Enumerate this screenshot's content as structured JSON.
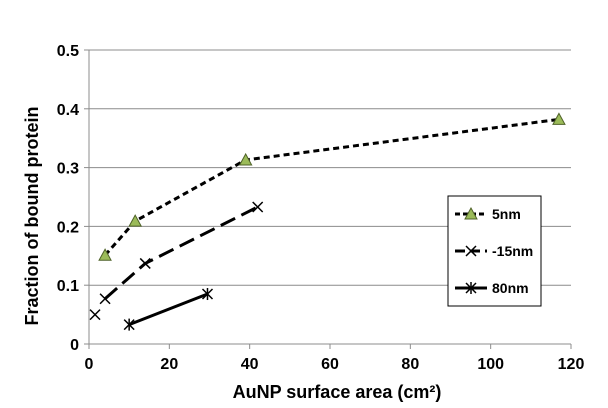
{
  "chart_data": {
    "type": "scatter",
    "title": "",
    "xlabel": "AuNP surface area (cm²)",
    "ylabel": "Fraction of bound protein",
    "xlim": [
      0,
      120
    ],
    "ylim": [
      0,
      0.5
    ],
    "xticks": [
      0,
      20,
      40,
      60,
      80,
      100,
      120
    ],
    "yticks": [
      0,
      0.1,
      0.2,
      0.3,
      0.4,
      0.5
    ],
    "ytick_labels": [
      "0",
      "0.1",
      "0.2",
      "0.3",
      "0.4",
      "0.5"
    ],
    "grid": "horizontal",
    "legend_position": "right",
    "series": [
      {
        "name": "5nm",
        "marker": "triangle",
        "line": "short-dash",
        "color": "#000000",
        "marker_fill": "#9bbb59",
        "points": [
          {
            "x": 4,
            "y": 0.151,
            "err": 0.028
          },
          {
            "x": 11.5,
            "y": 0.209,
            "err": 0.012
          },
          {
            "x": 39,
            "y": 0.313,
            "err": 0.04
          },
          {
            "x": 117,
            "y": 0.382,
            "err": 0.037
          }
        ]
      },
      {
        "name": "-15nm",
        "marker": "x",
        "line": "long-dash",
        "color": "#000000",
        "points": [
          {
            "x": 4,
            "y": 0.077,
            "err": 0.012
          },
          {
            "x": 14,
            "y": 0.137,
            "err": 0.03
          },
          {
            "x": 42,
            "y": 0.233,
            "err": 0.015
          }
        ]
      },
      {
        "name": "80nm",
        "marker": "star",
        "line": "solid",
        "color": "#000000",
        "points": [
          {
            "x": 10,
            "y": 0.033,
            "err": 0.012
          },
          {
            "x": 29.5,
            "y": 0.085,
            "err": 0.013
          }
        ]
      }
    ],
    "extra_points": [
      {
        "x": 1.5,
        "y": 0.05,
        "err": 0.01
      }
    ]
  }
}
